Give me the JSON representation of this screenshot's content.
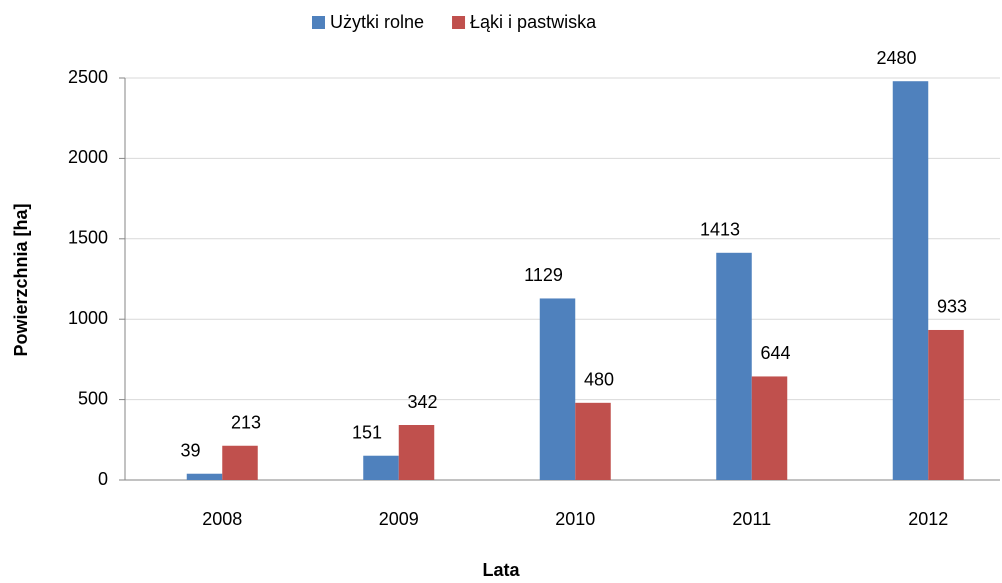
{
  "chart_data": {
    "type": "bar",
    "categories": [
      "2008",
      "2009",
      "2010",
      "2011",
      "2012"
    ],
    "series": [
      {
        "name": "Użytki rolne",
        "color": "#4f81bd",
        "values": [
          39,
          151,
          1129,
          1413,
          2480
        ]
      },
      {
        "name": "Łąki i pastwiska",
        "color": "#c0504d",
        "values": [
          213,
          342,
          480,
          644,
          933
        ]
      }
    ],
    "x_label": "Lata",
    "y_label": "Powierzchnia [ha]",
    "ylim": [
      0,
      2500
    ],
    "yticks": [
      0,
      500,
      1000,
      1500,
      2000,
      2500
    ],
    "grid": true,
    "legend": "top"
  }
}
